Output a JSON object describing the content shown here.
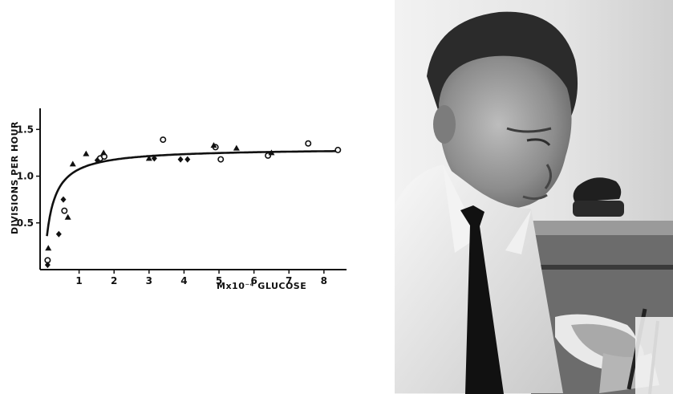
{
  "chart_data": {
    "type": "scatter",
    "xlabel": "Mx10⁻⁴ GLUCOSE",
    "ylabel": "DIVISIONS PER HOUR",
    "xlim": [
      0,
      8.6
    ],
    "ylim": [
      0,
      1.7
    ],
    "x_ticks": [
      "1",
      "2",
      "3",
      "4",
      "5",
      "6",
      "7",
      "8"
    ],
    "x_tick_values": [
      1,
      2,
      3,
      4,
      5,
      6,
      7,
      8
    ],
    "y_ticks": [
      "0.5",
      "1.0",
      "1.5"
    ],
    "y_tick_values": [
      0.5,
      1.0,
      1.5
    ],
    "grid": false,
    "fit_curve": {
      "form": "saturating",
      "ymax": 1.3,
      "k": 0.21
    },
    "series": [
      {
        "marker": "circle",
        "points": [
          [
            0.1,
            0.1
          ],
          [
            0.58,
            0.63
          ],
          [
            1.6,
            1.19
          ],
          [
            1.72,
            1.21
          ],
          [
            3.4,
            1.39
          ],
          [
            4.9,
            1.31
          ],
          [
            5.05,
            1.18
          ],
          [
            6.4,
            1.22
          ],
          [
            7.55,
            1.35
          ],
          [
            8.4,
            1.28
          ]
        ]
      },
      {
        "marker": "triangle",
        "points": [
          [
            0.12,
            0.23
          ],
          [
            0.68,
            0.56
          ],
          [
            0.82,
            1.13
          ],
          [
            1.2,
            1.24
          ],
          [
            1.7,
            1.25
          ],
          [
            3.0,
            1.19
          ],
          [
            4.85,
            1.33
          ],
          [
            5.5,
            1.3
          ],
          [
            6.5,
            1.25
          ]
        ]
      },
      {
        "marker": "diamond",
        "points": [
          [
            0.1,
            0.05
          ],
          [
            0.42,
            0.38
          ],
          [
            0.55,
            0.75
          ],
          [
            1.52,
            1.17
          ],
          [
            3.15,
            1.19
          ],
          [
            3.9,
            1.18
          ],
          [
            4.1,
            1.18
          ]
        ]
      }
    ]
  },
  "photo": {
    "subject": "man-portrait",
    "tone": "grayscale"
  }
}
